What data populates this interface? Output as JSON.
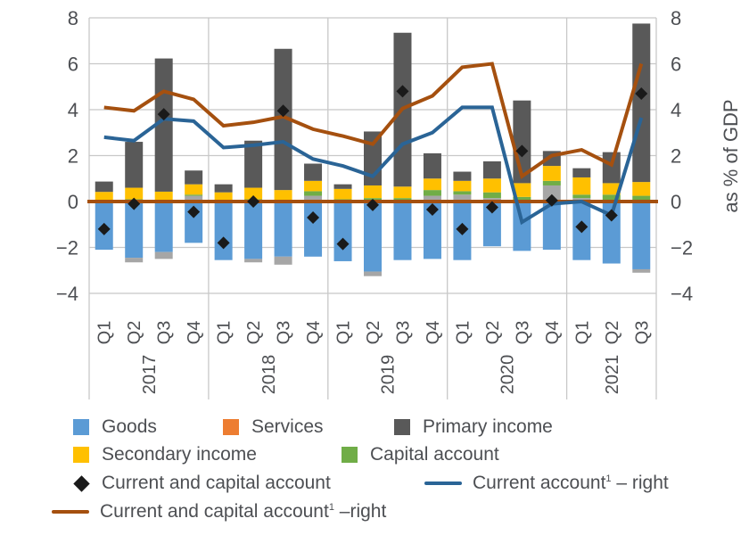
{
  "chart_data": {
    "type": "bar",
    "subtype": "stacked bar with line and marker overlays",
    "title": "",
    "xlabel": "",
    "ylabel_left": "",
    "ylabel_right": "as % of GDP",
    "ylim_left": [
      -4,
      8
    ],
    "ylim_right": [
      -4,
      8
    ],
    "yticks_left": [
      "8",
      "6",
      "4",
      "2",
      "0",
      "−2",
      "−4"
    ],
    "yticks_right": [
      "8",
      "6",
      "4",
      "2",
      "0",
      "−2",
      "−4"
    ],
    "ytick_values": [
      8,
      6,
      4,
      2,
      0,
      -2,
      -4
    ],
    "grid": true,
    "legend_position": "bottom",
    "years": [
      {
        "label": "2017",
        "quarters": [
          "Q1",
          "Q2",
          "Q3",
          "Q4"
        ]
      },
      {
        "label": "2018",
        "quarters": [
          "Q1",
          "Q2",
          "Q3",
          "Q4"
        ]
      },
      {
        "label": "2019",
        "quarters": [
          "Q1",
          "Q2",
          "Q3",
          "Q4"
        ]
      },
      {
        "label": "2020",
        "quarters": [
          "Q1",
          "Q2",
          "Q3",
          "Q4"
        ]
      },
      {
        "label": "2021",
        "quarters": [
          "Q1",
          "Q2",
          "Q3"
        ]
      }
    ],
    "categories": [
      "2017 Q1",
      "2017 Q2",
      "2017 Q3",
      "2017 Q4",
      "2018 Q1",
      "2018 Q2",
      "2018 Q3",
      "2018 Q4",
      "2019 Q1",
      "2019 Q2",
      "2019 Q3",
      "2019 Q4",
      "2020 Q1",
      "2020 Q2",
      "2020 Q3",
      "2020 Q4",
      "2021 Q1",
      "2021 Q2",
      "2021 Q3"
    ],
    "bar_series": [
      {
        "name": "Goods",
        "color": "#5b9bd5",
        "values": [
          -2.1,
          -2.45,
          -2.2,
          -1.8,
          -2.55,
          -2.5,
          -2.4,
          -2.4,
          -2.6,
          -3.05,
          -2.55,
          -2.5,
          -2.55,
          -1.95,
          -2.15,
          -2.1,
          -2.55,
          -2.7,
          -2.95
        ]
      },
      {
        "name": "Services",
        "color": "#ed7d31",
        "plot_color": "#a6a6a6",
        "values": [
          0,
          -0.2,
          -0.3,
          0.25,
          0,
          -0.15,
          -0.35,
          0.25,
          0.05,
          -0.2,
          0,
          0.25,
          0.3,
          0.15,
          0,
          0.7,
          0.15,
          0,
          -0.15
        ]
      },
      {
        "name": "Capital account",
        "color": "#70ad47",
        "values": [
          0.02,
          0.1,
          0.03,
          0.05,
          0.05,
          0.1,
          0.05,
          0.2,
          0.05,
          0.15,
          0.15,
          0.25,
          0.15,
          0.25,
          0.2,
          0.2,
          0.15,
          0.3,
          0.25
        ]
      },
      {
        "name": "Secondary income",
        "color": "#ffc000",
        "values": [
          0.4,
          0.5,
          0.4,
          0.45,
          0.35,
          0.5,
          0.45,
          0.45,
          0.45,
          0.55,
          0.5,
          0.5,
          0.45,
          0.6,
          0.6,
          0.65,
          0.75,
          0.5,
          0.6
        ]
      },
      {
        "name": "Primary income",
        "color": "#595959",
        "values": [
          0.45,
          2.0,
          5.8,
          0.6,
          0.35,
          2.05,
          6.15,
          0.75,
          0.2,
          2.35,
          6.7,
          1.1,
          0.4,
          0.75,
          3.6,
          0.65,
          0.4,
          1.35,
          6.9
        ]
      }
    ],
    "marker_series": {
      "name": "Current and capital account",
      "color": "#1a1a1a",
      "marker": "diamond",
      "values": [
        -1.2,
        -0.1,
        3.8,
        -0.45,
        -1.8,
        0.0,
        3.95,
        -0.7,
        -1.85,
        -0.15,
        4.8,
        -0.35,
        -1.2,
        -0.25,
        2.2,
        0.05,
        -1.1,
        -0.6,
        4.7
      ]
    },
    "line_series": [
      {
        "name": "Current account¹ – right",
        "axis": "right",
        "color": "#2a6496",
        "values": [
          2.8,
          2.65,
          3.6,
          3.5,
          2.35,
          2.45,
          2.6,
          1.85,
          1.55,
          1.1,
          2.5,
          3.0,
          4.1,
          4.1,
          -0.9,
          -0.1,
          0.0,
          -0.6,
          3.65
        ]
      },
      {
        "name": "Current and capital account¹ –right",
        "axis": "right",
        "color": "#a5500f",
        "values": [
          4.1,
          3.95,
          4.8,
          4.45,
          3.3,
          3.45,
          3.7,
          3.15,
          2.85,
          2.5,
          4.05,
          4.6,
          5.85,
          6.0,
          1.1,
          2.0,
          2.25,
          1.6,
          6.0
        ]
      }
    ]
  },
  "legend": {
    "goods": "Goods",
    "services": "Services",
    "primary_income": "Primary income",
    "secondary_income": "Secondary income",
    "capital_account": "Capital account",
    "current_and_capital_account": "Current and capital account",
    "current_account_right": "Current account",
    "current_account_right_suffix": " – right",
    "cca_right": "Current and capital account",
    "cca_right_suffix": " –right",
    "footnote_mark": "1"
  }
}
